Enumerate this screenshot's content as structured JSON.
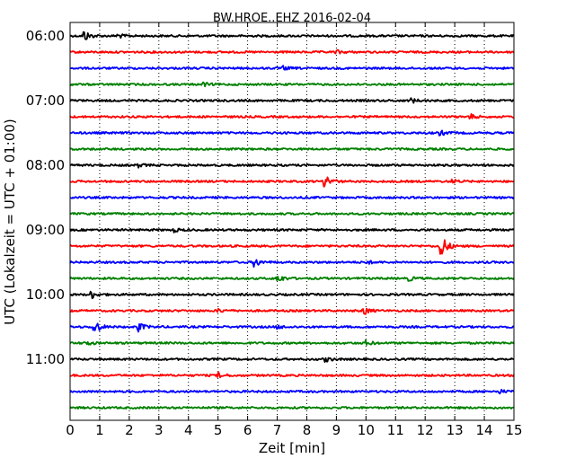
{
  "chart_data": {
    "type": "line",
    "title": "BW.HROE..EHZ 2016-02-04",
    "xlabel": "Zeit  [min]",
    "ylabel": "UTC (Lokalzeit = UTC + 01:00)",
    "xlim": [
      0,
      15
    ],
    "x_ticks": [
      "0",
      "1",
      "2",
      "3",
      "4",
      "5",
      "6",
      "7",
      "8",
      "9",
      "10",
      "11",
      "12",
      "13",
      "14",
      "15"
    ],
    "y_ticks": [
      "06:00",
      "07:00",
      "08:00",
      "09:00",
      "10:00",
      "11:00"
    ],
    "vertical_grid": "dotted",
    "series_colors": [
      "#000000",
      "#ff0000",
      "#0000ff",
      "#008000"
    ],
    "traces": [
      {
        "start": "06:00",
        "color": "#000000",
        "events": [
          {
            "t": 0.45,
            "amp": 7
          },
          {
            "t": 1.6,
            "amp": 2.5
          }
        ]
      },
      {
        "start": "06:15",
        "color": "#ff0000",
        "events": [
          {
            "t": 9.0,
            "amp": 2
          }
        ]
      },
      {
        "start": "06:30",
        "color": "#0000ff",
        "events": [
          {
            "t": 7.2,
            "amp": 2
          }
        ]
      },
      {
        "start": "06:45",
        "color": "#008000",
        "events": [
          {
            "t": 4.5,
            "amp": 2
          }
        ]
      },
      {
        "start": "07:00",
        "color": "#000000",
        "events": [
          {
            "t": 11.5,
            "amp": 3
          }
        ]
      },
      {
        "start": "07:15",
        "color": "#ff0000",
        "events": [
          {
            "t": 13.5,
            "amp": 3
          }
        ]
      },
      {
        "start": "07:30",
        "color": "#0000ff",
        "events": [
          {
            "t": 12.5,
            "amp": 3
          }
        ]
      },
      {
        "start": "07:45",
        "color": "#008000",
        "events": []
      },
      {
        "start": "08:00",
        "color": "#000000",
        "events": [
          {
            "t": 2.3,
            "amp": 2
          }
        ]
      },
      {
        "start": "08:15",
        "color": "#ff0000",
        "events": [
          {
            "t": 8.6,
            "amp": 9
          },
          {
            "t": 12.9,
            "amp": 2
          }
        ]
      },
      {
        "start": "08:30",
        "color": "#0000ff",
        "events": []
      },
      {
        "start": "08:45",
        "color": "#008000",
        "events": []
      },
      {
        "start": "09:00",
        "color": "#000000",
        "events": [
          {
            "t": 3.5,
            "amp": 2
          }
        ]
      },
      {
        "start": "09:15",
        "color": "#ff0000",
        "events": [
          {
            "t": 12.5,
            "amp": 17
          }
        ]
      },
      {
        "start": "09:30",
        "color": "#0000ff",
        "events": [
          {
            "t": 6.2,
            "amp": 6
          },
          {
            "t": 10.0,
            "amp": 2
          }
        ]
      },
      {
        "start": "09:45",
        "color": "#008000",
        "events": [
          {
            "t": 7.0,
            "amp": 5
          },
          {
            "t": 11.4,
            "amp": 3
          }
        ]
      },
      {
        "start": "10:00",
        "color": "#000000",
        "events": [
          {
            "t": 0.7,
            "amp": 5
          }
        ]
      },
      {
        "start": "10:15",
        "color": "#ff0000",
        "events": [
          {
            "t": 9.9,
            "amp": 5
          },
          {
            "t": 5.0,
            "amp": 2
          }
        ]
      },
      {
        "start": "10:30",
        "color": "#0000ff",
        "events": [
          {
            "t": 0.8,
            "amp": 9
          },
          {
            "t": 2.3,
            "amp": 5
          },
          {
            "t": 7.0,
            "amp": 2
          }
        ]
      },
      {
        "start": "10:45",
        "color": "#008000",
        "events": [
          {
            "t": 0.5,
            "amp": 3
          },
          {
            "t": 10.0,
            "amp": 3
          }
        ]
      },
      {
        "start": "11:00",
        "color": "#000000",
        "events": [
          {
            "t": 8.6,
            "amp": 3
          }
        ]
      },
      {
        "start": "11:15",
        "color": "#ff0000",
        "events": [
          {
            "t": 5.0,
            "amp": 3
          }
        ]
      },
      {
        "start": "11:30",
        "color": "#0000ff",
        "events": [
          {
            "t": 14.5,
            "amp": 2
          }
        ]
      },
      {
        "start": "11:45",
        "color": "#008000",
        "events": []
      }
    ]
  }
}
